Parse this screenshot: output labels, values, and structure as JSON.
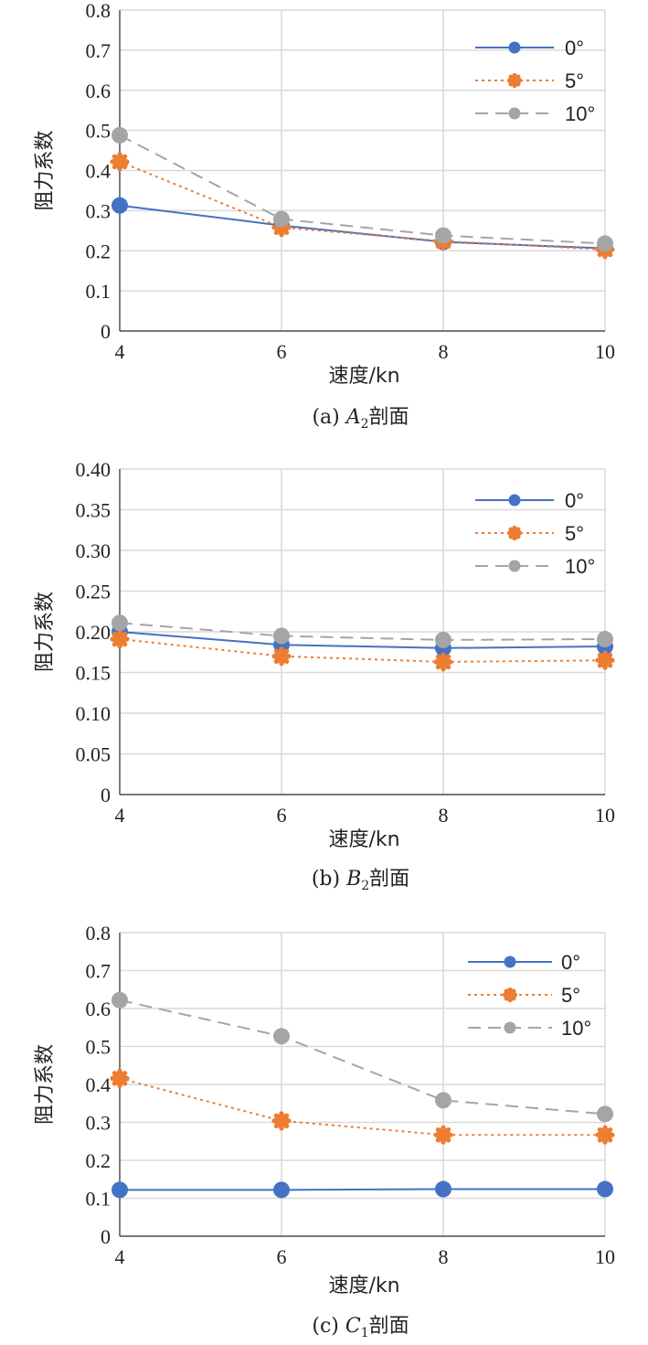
{
  "colors": {
    "series_0": "#4472C4",
    "series_5": "#ED7D31",
    "series_10": "#A5A5A5",
    "grid": "#D9D9D9",
    "axis": "#333333"
  },
  "chart_data": [
    {
      "type": "line",
      "caption": "(a) A2剖面",
      "caption_prefix": "(a) ",
      "caption_letter": "A",
      "caption_sub": "2",
      "caption_suffix": "剖面",
      "xlabel": "速度/kn",
      "ylabel": "阻力系数",
      "x": [
        4,
        6,
        8,
        10
      ],
      "x_tick_labels": [
        "4",
        "6",
        "8",
        "10"
      ],
      "ylim": [
        0,
        0.8
      ],
      "y_ticks": [
        0,
        0.1,
        0.2,
        0.3,
        0.4,
        0.5,
        0.6,
        0.7,
        0.8
      ],
      "y_tick_labels": [
        "0",
        "0.1",
        "0.2",
        "0.3",
        "0.4",
        "0.5",
        "0.6",
        "0.7",
        "0.8"
      ],
      "grid": true,
      "legend_position": "top-right",
      "series": [
        {
          "name": "0°",
          "values": [
            0.313,
            0.263,
            0.222,
            0.206
          ]
        },
        {
          "name": "5°",
          "values": [
            0.422,
            0.258,
            0.224,
            0.203
          ]
        },
        {
          "name": "10°",
          "values": [
            0.488,
            0.279,
            0.238,
            0.218
          ]
        }
      ]
    },
    {
      "type": "line",
      "caption": "(b) B2剖面",
      "caption_prefix": "(b) ",
      "caption_letter": "B",
      "caption_sub": "2",
      "caption_suffix": "剖面",
      "xlabel": "速度/kn",
      "ylabel": "阻力系数",
      "x": [
        4,
        6,
        8,
        10
      ],
      "x_tick_labels": [
        "4",
        "6",
        "8",
        "10"
      ],
      "ylim": [
        0,
        0.4
      ],
      "y_ticks": [
        0,
        0.05,
        0.1,
        0.15,
        0.2,
        0.25,
        0.3,
        0.35,
        0.4
      ],
      "y_tick_labels": [
        "0",
        "0.05",
        "0.10",
        "0.15",
        "0.20",
        "0.25",
        "0.30",
        "0.35",
        "0.40"
      ],
      "grid": true,
      "legend_position": "top-right",
      "series": [
        {
          "name": "0°",
          "values": [
            0.2,
            0.184,
            0.18,
            0.182
          ]
        },
        {
          "name": "5°",
          "values": [
            0.191,
            0.17,
            0.163,
            0.165
          ]
        },
        {
          "name": "10°",
          "values": [
            0.211,
            0.195,
            0.19,
            0.191
          ]
        }
      ]
    },
    {
      "type": "line",
      "caption": "(c) C1剖面",
      "caption_prefix": "(c) ",
      "caption_letter": "C",
      "caption_sub": "1",
      "caption_suffix": "剖面",
      "xlabel": "速度/kn",
      "ylabel": "阻力系数",
      "x": [
        4,
        6,
        8,
        10
      ],
      "x_tick_labels": [
        "4",
        "6",
        "8",
        "10"
      ],
      "ylim": [
        0,
        0.8
      ],
      "y_ticks": [
        0,
        0.1,
        0.2,
        0.3,
        0.4,
        0.5,
        0.6,
        0.7,
        0.8
      ],
      "y_tick_labels": [
        "0",
        "0.1",
        "0.2",
        "0.3",
        "0.4",
        "0.5",
        "0.6",
        "0.7",
        "0.8"
      ],
      "grid": true,
      "legend_position": "top-right",
      "series": [
        {
          "name": "0°",
          "values": [
            0.122,
            0.122,
            0.124,
            0.124
          ]
        },
        {
          "name": "5°",
          "values": [
            0.416,
            0.304,
            0.267,
            0.267
          ]
        },
        {
          "name": "10°",
          "values": [
            0.622,
            0.527,
            0.358,
            0.322
          ]
        }
      ]
    }
  ]
}
